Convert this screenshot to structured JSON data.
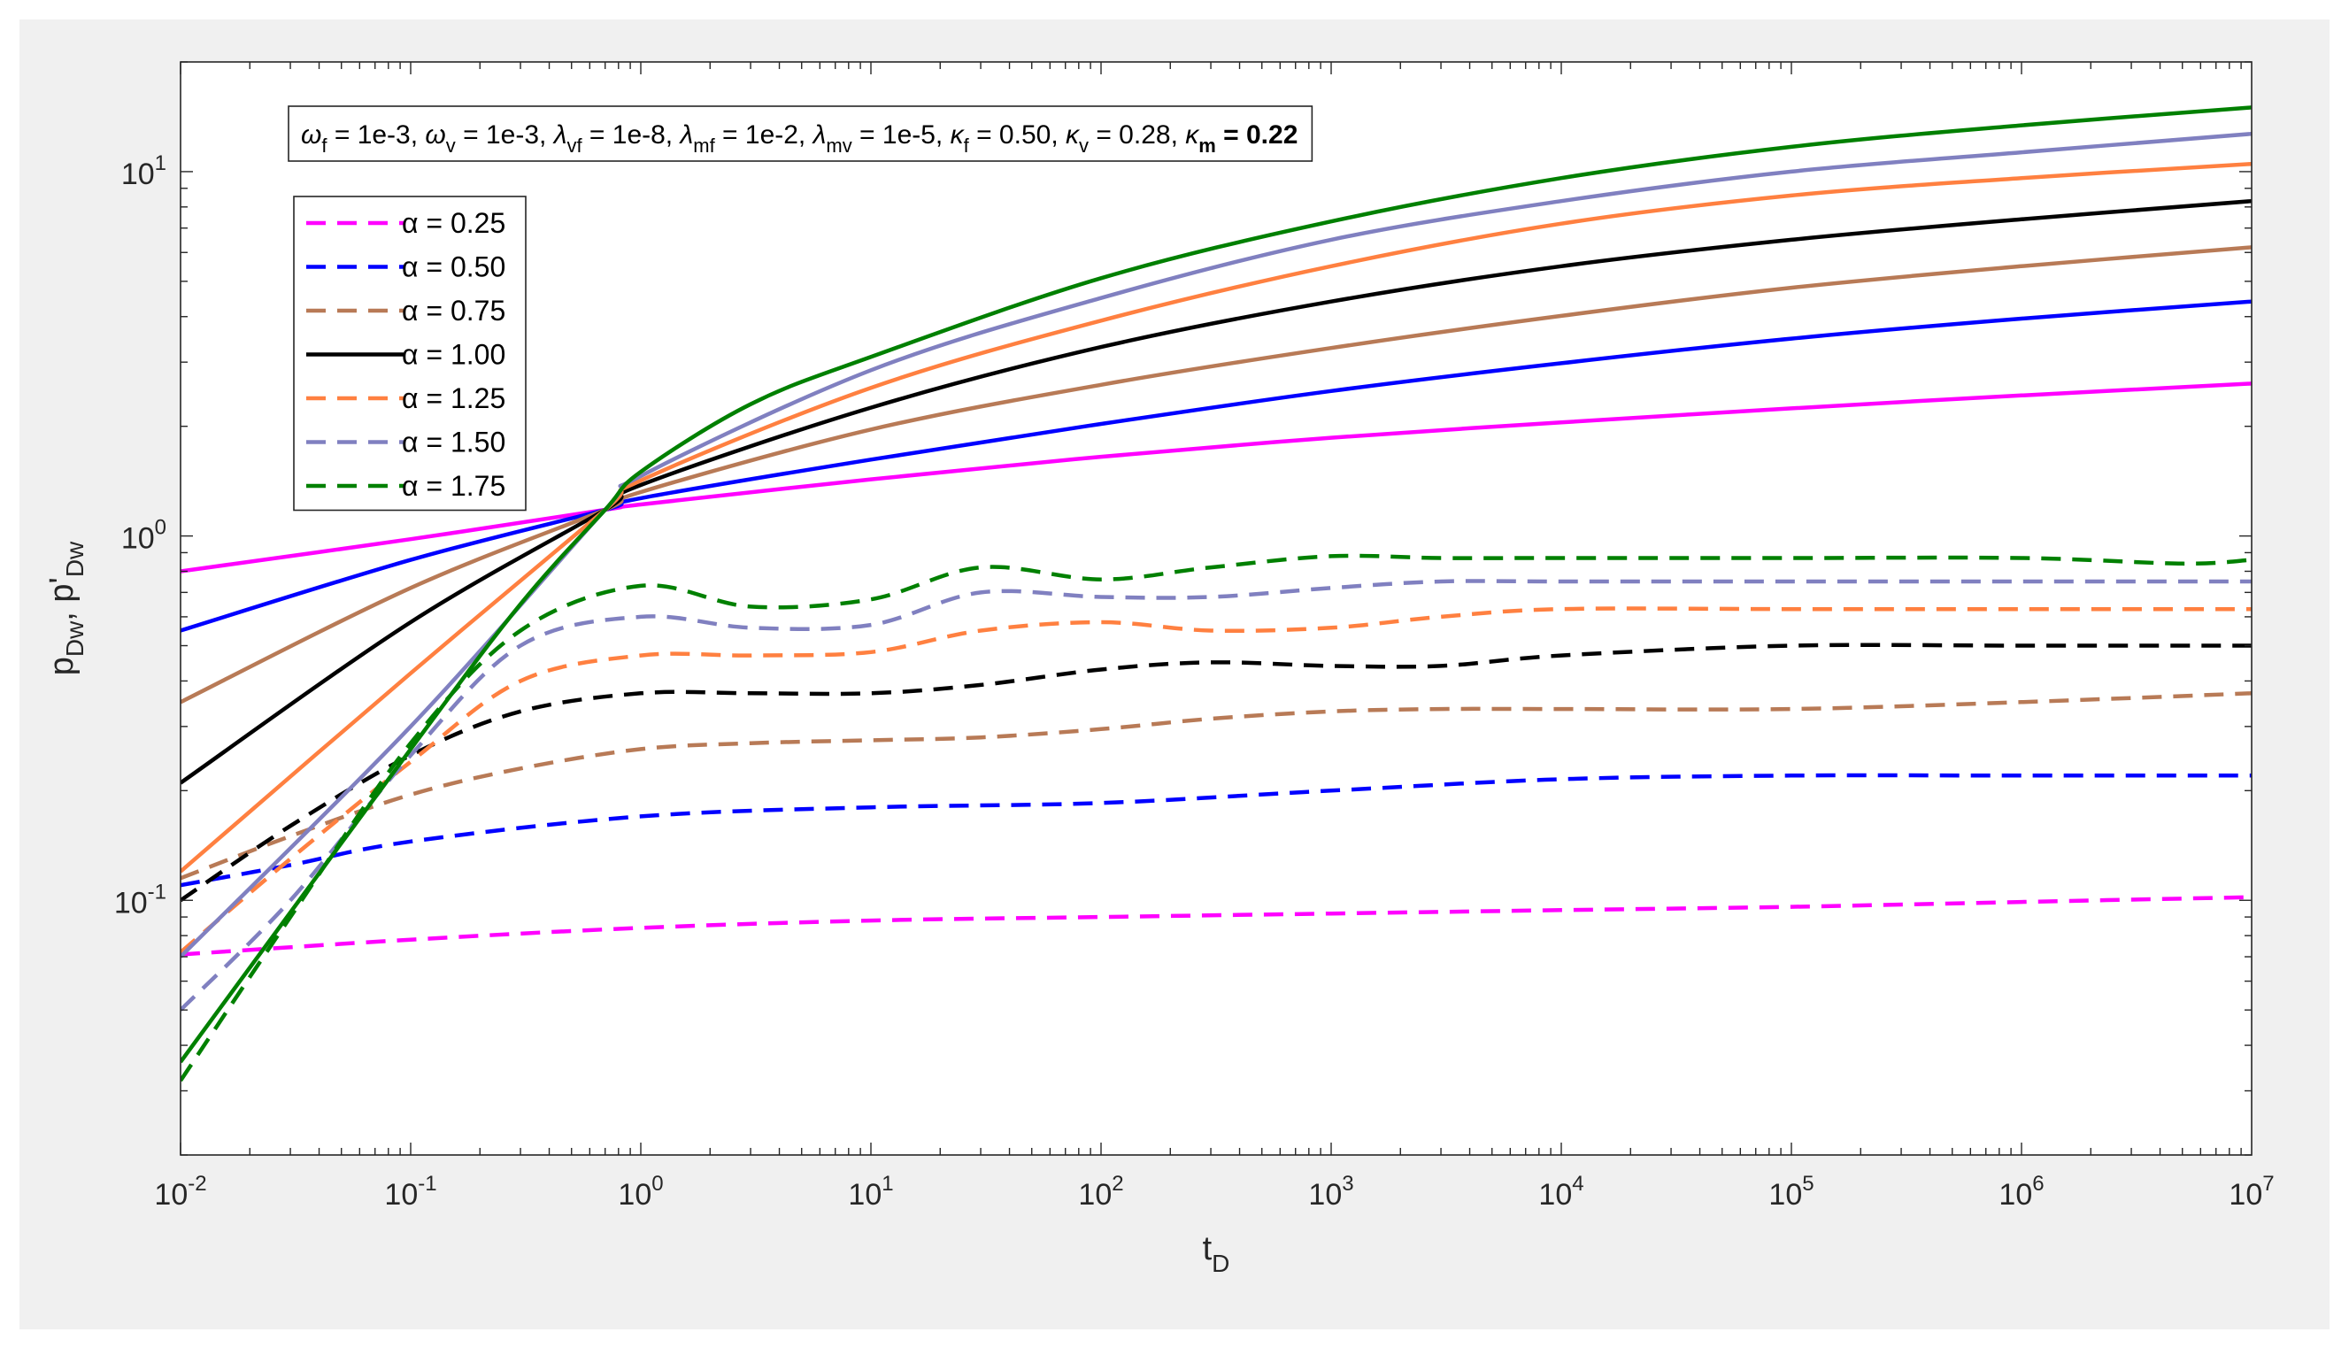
{
  "chart_data": {
    "type": "line",
    "xscale": "log",
    "yscale": "log",
    "xlim": [
      0.01,
      10000000
    ],
    "ylim": [
      0.02,
      20
    ],
    "xlabel_base": "t",
    "xlabel_sub": "D",
    "ylabel_parts": [
      {
        "t": "p",
        "sub": false
      },
      {
        "t": "Dw",
        "sub": true
      },
      {
        "t": ", p'",
        "sub": false
      },
      {
        "t": "Dw",
        "sub": true
      }
    ],
    "x_ticks": [
      {
        "v": 0.01,
        "exp": "-2"
      },
      {
        "v": 0.1,
        "exp": "-1"
      },
      {
        "v": 1,
        "exp": "0"
      },
      {
        "v": 10,
        "exp": "1"
      },
      {
        "v": 100,
        "exp": "2"
      },
      {
        "v": 1000,
        "exp": "3"
      },
      {
        "v": 10000,
        "exp": "4"
      },
      {
        "v": 100000,
        "exp": "5"
      },
      {
        "v": 1000000,
        "exp": "6"
      },
      {
        "v": 10000000,
        "exp": "7"
      }
    ],
    "y_ticks": [
      {
        "v": 0.1,
        "exp": "-1"
      },
      {
        "v": 1,
        "exp": "0"
      },
      {
        "v": 10,
        "exp": "1"
      }
    ],
    "tick_base": "10",
    "annotation_parts": [
      {
        "t": "ω",
        "sym": true
      },
      {
        "t": "f",
        "sub": true
      },
      {
        "t": " = 1e-3, "
      },
      {
        "t": "ω",
        "sym": true
      },
      {
        "t": "v",
        "sub": true
      },
      {
        "t": " = 1e-3, "
      },
      {
        "t": "λ",
        "sym": true
      },
      {
        "t": "vf",
        "sub": true
      },
      {
        "t": " = 1e-8, "
      },
      {
        "t": "λ",
        "sym": true
      },
      {
        "t": "mf",
        "sub": true
      },
      {
        "t": " = 1e-2, "
      },
      {
        "t": "λ",
        "sym": true
      },
      {
        "t": "mv",
        "sub": true
      },
      {
        "t": " = 1e-5, "
      },
      {
        "t": "κ",
        "sym": true
      },
      {
        "t": "f",
        "sub": true
      },
      {
        "t": " = 0.50, "
      },
      {
        "t": "κ",
        "sym": true
      },
      {
        "t": "v",
        "sub": true
      },
      {
        "t": " = 0.28, "
      },
      {
        "t": "κ",
        "sym": true
      },
      {
        "t": "m",
        "sub": true,
        "bold": true
      },
      {
        "t": " = 0.22",
        "bold": true
      }
    ],
    "legend_symbol": "α",
    "legend_location": "top-left",
    "series": [
      {
        "name": "α = 0.25",
        "color": "#ff00ff",
        "pressure": {
          "x": [
            0.01,
            0.1,
            0.7,
            1,
            10,
            100,
            1000,
            10000,
            100000,
            1000000,
            10000000
          ],
          "y": [
            0.8,
            0.98,
            1.18,
            1.22,
            1.43,
            1.65,
            1.86,
            2.05,
            2.24,
            2.43,
            2.62
          ]
        },
        "derivative": {
          "x": [
            0.01,
            0.1,
            1,
            10,
            100,
            1000,
            10000,
            100000,
            1000000,
            10000000
          ],
          "y": [
            0.071,
            0.078,
            0.084,
            0.088,
            0.09,
            0.092,
            0.094,
            0.096,
            0.099,
            0.102
          ]
        }
      },
      {
        "name": "α = 0.50",
        "color": "#0000ff",
        "pressure": {
          "x": [
            0.01,
            0.1,
            0.7,
            1,
            10,
            100,
            1000,
            10000,
            100000,
            1000000,
            10000000
          ],
          "y": [
            0.55,
            0.86,
            1.18,
            1.27,
            1.62,
            2.03,
            2.5,
            2.98,
            3.48,
            3.95,
            4.4
          ]
        },
        "derivative": {
          "x": [
            0.01,
            0.03,
            0.1,
            1,
            10,
            100,
            1000,
            10000,
            100000,
            1000000,
            10000000
          ],
          "y": [
            0.11,
            0.125,
            0.145,
            0.17,
            0.18,
            0.185,
            0.2,
            0.215,
            0.22,
            0.22,
            0.22
          ]
        }
      },
      {
        "name": "α = 0.75",
        "color": "#b87a56",
        "pressure": {
          "x": [
            0.01,
            0.1,
            0.7,
            1,
            10,
            100,
            1000,
            10000,
            100000,
            1000000,
            10000000
          ],
          "y": [
            0.35,
            0.72,
            1.18,
            1.32,
            1.96,
            2.6,
            3.28,
            4.02,
            4.8,
            5.5,
            6.2
          ]
        },
        "derivative": {
          "x": [
            0.01,
            0.03,
            0.1,
            0.3,
            1,
            3,
            10,
            30,
            100,
            300,
            1000,
            3000,
            10000,
            100000,
            1000000,
            10000000
          ],
          "y": [
            0.115,
            0.15,
            0.195,
            0.23,
            0.26,
            0.27,
            0.275,
            0.28,
            0.295,
            0.315,
            0.33,
            0.335,
            0.335,
            0.335,
            0.35,
            0.37
          ]
        }
      },
      {
        "name": "α = 1.00",
        "color": "#000000",
        "pressure": {
          "x": [
            0.01,
            0.1,
            0.7,
            1,
            10,
            100,
            1000,
            10000,
            100000,
            1000000,
            10000000
          ],
          "y": [
            0.21,
            0.58,
            1.18,
            1.38,
            2.25,
            3.3,
            4.4,
            5.5,
            6.5,
            7.4,
            8.3
          ]
        },
        "derivative": {
          "x": [
            0.01,
            0.03,
            0.1,
            0.3,
            1,
            3,
            10,
            30,
            100,
            300,
            1000,
            3000,
            10000,
            100000,
            1000000,
            10000000
          ],
          "y": [
            0.1,
            0.16,
            0.25,
            0.33,
            0.37,
            0.37,
            0.37,
            0.39,
            0.43,
            0.45,
            0.44,
            0.44,
            0.47,
            0.5,
            0.5,
            0.5
          ]
        }
      },
      {
        "name": "α = 1.25",
        "color": "#ff8040",
        "pressure": {
          "x": [
            0.01,
            0.1,
            0.7,
            1,
            10,
            100,
            1000,
            10000,
            100000,
            1000000,
            10000000
          ],
          "y": [
            0.12,
            0.42,
            1.18,
            1.42,
            2.55,
            3.9,
            5.5,
            7.2,
            8.6,
            9.6,
            10.5
          ]
        },
        "derivative": {
          "x": [
            0.01,
            0.03,
            0.1,
            0.3,
            1,
            3,
            10,
            30,
            100,
            300,
            1000,
            3000,
            10000,
            100000,
            1000000,
            10000000
          ],
          "y": [
            0.072,
            0.13,
            0.24,
            0.4,
            0.47,
            0.47,
            0.48,
            0.55,
            0.58,
            0.55,
            0.56,
            0.6,
            0.63,
            0.63,
            0.63,
            0.63
          ]
        }
      },
      {
        "name": "α = 1.50",
        "color": "#8080c0",
        "pressure": {
          "x": [
            0.01,
            0.1,
            0.7,
            1,
            10,
            100,
            1000,
            10000,
            100000,
            1000000,
            10000000
          ],
          "y": [
            0.07,
            0.3,
            1.18,
            1.46,
            2.85,
            4.5,
            6.5,
            8.3,
            10.0,
            11.3,
            12.7
          ]
        },
        "derivative": {
          "x": [
            0.01,
            0.03,
            0.1,
            0.3,
            1,
            3,
            10,
            30,
            100,
            300,
            1000,
            3000,
            10000,
            100000,
            1000000,
            10000000
          ],
          "y": [
            0.05,
            0.1,
            0.25,
            0.5,
            0.6,
            0.56,
            0.57,
            0.7,
            0.68,
            0.68,
            0.72,
            0.75,
            0.75,
            0.75,
            0.75,
            0.75
          ]
        }
      },
      {
        "name": "α = 1.75",
        "color": "#008000",
        "pressure": {
          "x": [
            0.01,
            0.1,
            0.3,
            0.7,
            1,
            3,
            10,
            100,
            1000,
            10000,
            100000,
            1000000,
            10000000
          ],
          "y": [
            0.036,
            0.26,
            0.65,
            1.18,
            1.5,
            2.3,
            3.1,
            5.1,
            7.3,
            9.6,
            11.7,
            13.4,
            15.0
          ]
        },
        "derivative": {
          "x": [
            0.01,
            0.03,
            0.1,
            0.3,
            1,
            3,
            10,
            30,
            100,
            300,
            1000,
            3000,
            10000,
            100000,
            1000000,
            5000000,
            10000000
          ],
          "y": [
            0.032,
            0.09,
            0.27,
            0.55,
            0.73,
            0.64,
            0.67,
            0.82,
            0.76,
            0.82,
            0.88,
            0.87,
            0.87,
            0.87,
            0.87,
            0.84,
            0.86
          ]
        }
      }
    ]
  }
}
